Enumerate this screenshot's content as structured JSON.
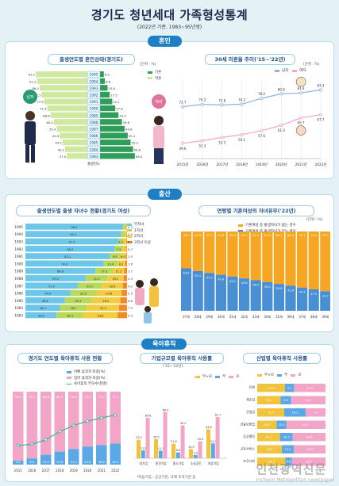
{
  "header": {
    "title": "경기도 청년세대 가족형성통계",
    "subtitle": "(2022년 기준, 1983~95년생)"
  },
  "sections": {
    "marriage": "혼인",
    "birth": "출산",
    "leave": "육아휴직"
  },
  "panels": {
    "p1": {
      "title": "출생연도별 혼인상태(경기도)",
      "unit": "(단위 : %)",
      "legend": [
        "기혼",
        "미혼"
      ],
      "axis": "출생연도",
      "male": "남자",
      "female": "여자"
    },
    "p2": {
      "title": "30세 미혼율 추이('15~'22년)",
      "unit": "(단위 : %)",
      "legend": [
        "남자",
        "여자"
      ]
    },
    "p3": {
      "title": "출생연도별 출생 자녀수 현황(경기도 여성)",
      "legend": [
        "무자녀",
        "1자녀",
        "2자녀",
        "3자녀 이상"
      ]
    },
    "p4": {
      "title": "연령별 기혼여성의 자녀유무('22년)",
      "unit": "(단위 : %)",
      "legend": [
        "기혼여성 중 출생자녀가 없는 경우",
        "기혼여성 중 출생자녀가 있는 경우"
      ]
    },
    "p5": {
      "title": "경기도 연도별 육아휴직 사용 현황",
      "legend": [
        "아빠 휴직자 비중(%)",
        "엄마 휴직자 비중(%)",
        "육아휴직 부모수(천명)"
      ]
    },
    "p6": {
      "title": "기업규모별 육아휴직 사용률",
      "sub": "('15~'22년)",
      "legend": [
        "부+모",
        "부",
        "모"
      ],
      "note": "*처음기업 : 공공기관, 국제 조직기관 등"
    },
    "p7": {
      "title": "산업별 육아휴직 사용률",
      "legend": [
        "부+모",
        "부",
        "모"
      ]
    }
  },
  "chart_data": [
    {
      "type": "bar",
      "title": "출생연도별 혼인상태(경기도)",
      "categories": [
        "1995",
        "1994",
        "1993",
        "1992",
        "1991",
        "1990",
        "1989",
        "1988",
        "1987",
        "1986",
        "1985",
        "1984",
        "1983"
      ],
      "series": [
        {
          "name": "기혼",
          "values": [
            6.9,
            8.8,
            13.6,
            17.5,
            22.1,
            27.6,
            33.4,
            39.6,
            44.6,
            50.1,
            55.3,
            59.8,
            63.0
          ]
        },
        {
          "name": "미혼",
          "values": [
            93.1,
            91.2,
            86.4,
            82.5,
            77.9,
            72.4,
            66.6,
            60.4,
            55.4,
            49.9,
            44.7,
            40.2,
            37.0
          ]
        }
      ],
      "ylim": [
        0,
        100
      ]
    },
    {
      "type": "line",
      "title": "30세 미혼율 추이('15~'22년)",
      "categories": [
        "2015년",
        "2016년",
        "2017년",
        "2018년",
        "2019년",
        "2020년",
        "2021년",
        "2022년"
      ],
      "series": [
        {
          "name": "남자",
          "values": [
            72.7,
            74.2,
            73.8,
            74.3,
            78.0,
            80.8,
            81.4,
            83.3
          ]
        },
        {
          "name": "여자",
          "values": [
            49.6,
            51.3,
            53.3,
            55.1,
            57.6,
            61.0,
            65.7,
            67.7
          ]
        }
      ],
      "ylim": [
        0,
        100
      ]
    },
    {
      "type": "bar",
      "title": "출생연도별 출생 자녀수 현황(경기도 여성)",
      "categories": [
        "1995",
        "1994",
        "1993",
        "1992",
        "1991",
        "1990",
        "1989",
        "1988",
        "1987",
        "1986",
        "1985",
        "1984",
        "1983"
      ],
      "series": [
        {
          "name": "무자녀",
          "values": [
            96.2,
            94.0,
            91.4,
            88.0,
            83.1,
            76.9,
            68.8,
            59.3,
            51.5,
            44.4,
            38.6,
            34.0,
            30.6
          ]
        },
        {
          "name": "1자녀",
          "values": [
            2.3,
            3.9,
            5.1,
            7.3,
            9.9,
            13.4,
            17.3,
            21.3,
            23.7,
            25.5,
            26.3,
            26.7,
            26.3
          ]
        },
        {
          "name": "2자녀",
          "values": [
            1.2,
            1.7,
            3.0,
            4.0,
            6.0,
            8.1,
            11.2,
            16.1,
            20.6,
            24.8,
            28.5,
            31.4,
            33.8
          ]
        },
        {
          "name": "3자녀 이상",
          "values": [
            0.3,
            0.4,
            0.5,
            0.7,
            1.0,
            1.6,
            2.7,
            3.3,
            4.2,
            5.3,
            6.6,
            7.9,
            9.3
          ]
        }
      ],
      "ylim": [
        0,
        100
      ]
    },
    {
      "type": "bar",
      "title": "연령별 기혼여성의 자녀유무('22년)",
      "categories": [
        "27세",
        "28세",
        "29세",
        "30세",
        "31세",
        "32세",
        "33세",
        "34세",
        "35세",
        "36세",
        "37세",
        "38세",
        "39세"
      ],
      "series": [
        {
          "name": "기혼여성 중 출생자녀가 있는 경우",
          "values": [
            53.5,
            50.1,
            47.7,
            45.4,
            43.1,
            40.8,
            38.5,
            36.2,
            33.9,
            31.6,
            29.3,
            27.0,
            24.7
          ]
        },
        {
          "name": "기혼여성 중 출생자녀가 없는 경우",
          "values": [
            46.5,
            49.9,
            52.3,
            54.6,
            56.9,
            59.2,
            61.5,
            63.8,
            66.1,
            68.4,
            70.7,
            73.0,
            75.3
          ]
        }
      ],
      "ylim": [
        0,
        100
      ]
    },
    {
      "type": "bar",
      "title": "경기도 연도별 육아휴직 사용 현황",
      "categories": [
        "2015",
        "2016",
        "2017",
        "2018",
        "2019",
        "2020",
        "2021",
        "2022"
      ],
      "series": [
        {
          "name": "아빠 휴직자 비중(%)",
          "values": [
            5.6,
            8.5,
            13.4,
            17.8,
            21.4,
            24.6,
            26.6,
            28.9
          ]
        },
        {
          "name": "엄마 휴직자 비중(%)",
          "values": [
            94.4,
            91.5,
            86.6,
            82.2,
            78.6,
            75.4,
            73.4,
            71.1
          ]
        },
        {
          "name": "육아휴직 부모수(천명)",
          "values": [
            30.4,
            31.2,
            33.6,
            38.1,
            41.5,
            43.8,
            45.6,
            47.2
          ]
        }
      ],
      "ylim": [
        0,
        100
      ]
    },
    {
      "type": "bar",
      "title": "기업규모별 육아휴직 사용률",
      "categories": [
        "대기업",
        "중견기업",
        "중소기업",
        "소상공인",
        "처음기업"
      ],
      "series": [
        {
          "name": "부+모",
          "values": [
            27.9,
            28.5,
            21.8,
            13.9,
            43.6
          ]
        },
        {
          "name": "부",
          "values": [
            11.8,
            11.3,
            8.8,
            5.0,
            22.3
          ]
        },
        {
          "name": "모",
          "values": [
            60.6,
            69.3,
            49.2,
            25.3,
            61.7
          ]
        }
      ],
      "ylim": [
        0,
        100
      ]
    },
    {
      "type": "bar",
      "title": "산업별 육아휴직 사용률",
      "categories": [
        "전체",
        "제조업",
        "건설업",
        "금융보험업",
        "공공행정",
        "교육서비스",
        "보건사회"
      ],
      "series": [
        {
          "name": "부+모",
          "values": [
            27.9,
            22.3,
            12.9,
            30.2,
            44.1,
            35.6,
            28.1
          ]
        },
        {
          "name": "부",
          "values": [
            9.1,
            9.9,
            10.3,
            15.5,
            24.7,
            17.2,
            6.6
          ]
        },
        {
          "name": "모",
          "values": [
            31.6,
            32.9,
            9.4,
            61.1,
            63.8,
            45.9,
            33.5
          ]
        }
      ],
      "ylim": [
        0,
        100
      ]
    }
  ],
  "watermark": {
    "line1": "인천광역신문",
    "line2": "Incheon Metropolitan newspaper"
  }
}
